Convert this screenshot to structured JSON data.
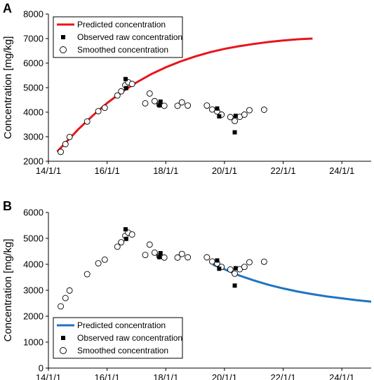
{
  "chart_data": [
    {
      "panel": "A",
      "type": "line",
      "ylabel": "Concentration [mg/kg]",
      "ylim": [
        2000,
        8000
      ],
      "yticks": [
        2000,
        3000,
        4000,
        5000,
        6000,
        7000,
        8000
      ],
      "xlim": [
        14.0,
        25.0
      ],
      "xticks": [
        14,
        16,
        18,
        20,
        22,
        24
      ],
      "xtick_labels": [
        "14/1/1",
        "16/1/1",
        "18/1/1",
        "20/1/1",
        "22/1/1",
        "24/1/1"
      ],
      "grid": false,
      "legend": "top-left",
      "series": [
        {
          "name": "Predicted concentration",
          "kind": "line",
          "color": "#e8141a",
          "x": [
            14.3,
            15.0,
            15.5,
            16.0,
            16.5,
            17.0,
            17.5,
            18.0,
            18.5,
            19.0,
            19.5,
            20.0,
            20.5,
            21.0,
            21.5,
            22.0,
            22.5,
            23.0
          ],
          "y": [
            2390,
            3280,
            3850,
            4370,
            4820,
            5210,
            5550,
            5830,
            6070,
            6270,
            6440,
            6580,
            6690,
            6780,
            6860,
            6920,
            6970,
            7000
          ]
        },
        {
          "name": "Observed raw concentration",
          "kind": "square",
          "color": "#000000",
          "x": [
            16.63,
            16.65,
            17.78,
            17.82,
            19.75,
            19.82,
            20.35,
            20.38
          ],
          "y": [
            5350,
            4980,
            4280,
            4430,
            4150,
            3830,
            3180,
            3850
          ]
        },
        {
          "name": "Smoothed concentration",
          "kind": "circle",
          "color": "#ffffff",
          "x": [
            14.42,
            14.58,
            14.72,
            15.32,
            15.7,
            15.92,
            16.35,
            16.48,
            16.62,
            16.72,
            16.85,
            17.3,
            17.45,
            17.62,
            17.78,
            17.95,
            18.4,
            18.55,
            18.75,
            19.4,
            19.58,
            19.75,
            19.9,
            20.2,
            20.35,
            20.52,
            20.68,
            20.85,
            21.35
          ],
          "y": [
            2380,
            2700,
            2990,
            3620,
            4040,
            4180,
            4680,
            4850,
            5100,
            5220,
            5150,
            4360,
            4760,
            4450,
            4310,
            4260,
            4260,
            4400,
            4270,
            4270,
            4110,
            4030,
            3900,
            3800,
            3640,
            3810,
            3900,
            4080,
            4100
          ]
        }
      ]
    },
    {
      "panel": "B",
      "type": "line",
      "ylabel": "Concentration [mg/kg]",
      "ylim": [
        0,
        6000
      ],
      "yticks": [
        0,
        1000,
        2000,
        3000,
        4000,
        5000,
        6000
      ],
      "xlim": [
        14.0,
        25.0
      ],
      "xticks": [
        14,
        16,
        18,
        20,
        22,
        24
      ],
      "xtick_labels": [
        "14/1/1",
        "16/1/1",
        "18/1/1",
        "20/1/1",
        "22/1/1",
        "24/1/1"
      ],
      "grid": false,
      "legend": "bottom-left",
      "series": [
        {
          "name": "Predicted concentration",
          "kind": "line",
          "color": "#1f74c0",
          "x": [
            19.6,
            20.0,
            20.5,
            21.0,
            21.5,
            22.0,
            22.5,
            23.0,
            23.5,
            24.0,
            24.5,
            25.0
          ],
          "y": [
            3990,
            3810,
            3570,
            3380,
            3210,
            3070,
            2950,
            2850,
            2760,
            2690,
            2620,
            2560
          ]
        },
        {
          "name": "Observed raw concentration",
          "kind": "square",
          "color": "#000000",
          "x": [
            16.63,
            16.65,
            17.78,
            17.82,
            19.75,
            19.82,
            20.35,
            20.38
          ],
          "y": [
            5350,
            4980,
            4280,
            4430,
            4150,
            3830,
            3180,
            3850
          ]
        },
        {
          "name": "Smoothed concentration",
          "kind": "circle",
          "color": "#ffffff",
          "x": [
            14.42,
            14.58,
            14.72,
            15.32,
            15.7,
            15.92,
            16.35,
            16.48,
            16.62,
            16.72,
            16.85,
            17.3,
            17.45,
            17.62,
            17.78,
            17.95,
            18.4,
            18.55,
            18.75,
            19.4,
            19.58,
            19.75,
            19.9,
            20.2,
            20.35,
            20.52,
            20.68,
            20.85,
            21.35
          ],
          "y": [
            2380,
            2700,
            2990,
            3620,
            4040,
            4180,
            4680,
            4850,
            5100,
            5220,
            5150,
            4360,
            4760,
            4450,
            4310,
            4260,
            4260,
            4400,
            4270,
            4270,
            4110,
            4030,
            3900,
            3800,
            3640,
            3810,
            3900,
            4080,
            4100
          ]
        }
      ]
    }
  ]
}
